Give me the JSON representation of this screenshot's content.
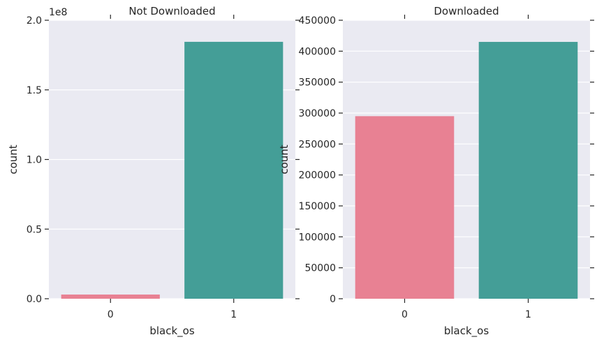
{
  "chart_data": [
    {
      "type": "bar",
      "title": "Not Downloaded",
      "xlabel": "black_os",
      "ylabel": "count",
      "categories": [
        "0",
        "1"
      ],
      "values": [
        3000000,
        184500000
      ],
      "ylim": [
        0,
        200000000
      ],
      "yticks": [
        0,
        50000000,
        100000000,
        150000000,
        200000000
      ],
      "ytick_labels": [
        "0.0",
        "0.5",
        "1.0",
        "1.5",
        "2.0"
      ],
      "offset_text": "1e8",
      "grid": true,
      "colors": [
        "#e88193",
        "#449e97"
      ]
    },
    {
      "type": "bar",
      "title": "Downloaded",
      "xlabel": "black_os",
      "ylabel": "count",
      "categories": [
        "0",
        "1"
      ],
      "values": [
        295000,
        415000
      ],
      "ylim": [
        0,
        450000
      ],
      "yticks": [
        0,
        50000,
        100000,
        150000,
        200000,
        250000,
        300000,
        350000,
        400000,
        450000
      ],
      "ytick_labels": [
        "0",
        "50000",
        "100000",
        "150000",
        "200000",
        "250000",
        "300000",
        "350000",
        "400000",
        "450000"
      ],
      "offset_text": "",
      "grid": true,
      "colors": [
        "#e88193",
        "#449e97"
      ]
    }
  ]
}
